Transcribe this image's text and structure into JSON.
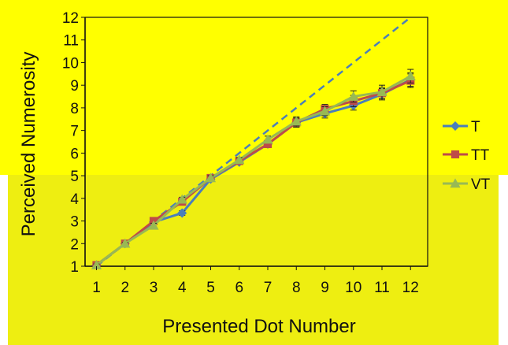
{
  "colors": {
    "background_upper": "#FFFF00",
    "background_lower": "#EEEE11",
    "series_T": "#4A7EBB",
    "series_TT": "#BE4B48",
    "series_VT": "#98B954",
    "identity_line": "#4A7EBB",
    "axis": "#111111"
  },
  "chart_data": {
    "type": "line",
    "xlabel": "Presented Dot Number",
    "ylabel": "Perceived Numerosity",
    "x": [
      1,
      2,
      3,
      4,
      5,
      6,
      7,
      8,
      9,
      10,
      11,
      12
    ],
    "xlim": [
      0.6,
      12.6
    ],
    "ylim": [
      1,
      12
    ],
    "yticks": [
      1,
      2,
      3,
      4,
      5,
      6,
      7,
      8,
      9,
      10,
      11,
      12
    ],
    "grid": false,
    "legend_position": "right",
    "reference_line": {
      "style": "dashed",
      "from": [
        1,
        1
      ],
      "to": [
        12,
        12
      ]
    },
    "series": [
      {
        "name": "T",
        "marker": "diamond",
        "values": [
          1.05,
          2.0,
          2.95,
          3.35,
          4.85,
          5.6,
          6.4,
          7.35,
          7.75,
          8.1,
          8.6,
          9.25
        ],
        "errors": [
          0.05,
          0.05,
          0.1,
          0.1,
          0.1,
          0.1,
          0.15,
          0.2,
          0.2,
          0.2,
          0.25,
          0.3
        ]
      },
      {
        "name": "TT",
        "marker": "square",
        "values": [
          1.05,
          2.0,
          3.0,
          3.85,
          4.9,
          5.65,
          6.4,
          7.35,
          7.95,
          8.3,
          8.65,
          9.2
        ],
        "errors": [
          0.05,
          0.05,
          0.1,
          0.1,
          0.1,
          0.1,
          0.15,
          0.2,
          0.2,
          0.25,
          0.25,
          0.3
        ]
      },
      {
        "name": "VT",
        "marker": "triangle",
        "values": [
          1.05,
          2.0,
          2.8,
          3.95,
          4.9,
          5.7,
          6.6,
          7.4,
          7.85,
          8.5,
          8.7,
          9.4
        ],
        "errors": [
          0.05,
          0.05,
          0.1,
          0.1,
          0.1,
          0.1,
          0.15,
          0.2,
          0.2,
          0.25,
          0.3,
          0.3
        ]
      }
    ]
  }
}
